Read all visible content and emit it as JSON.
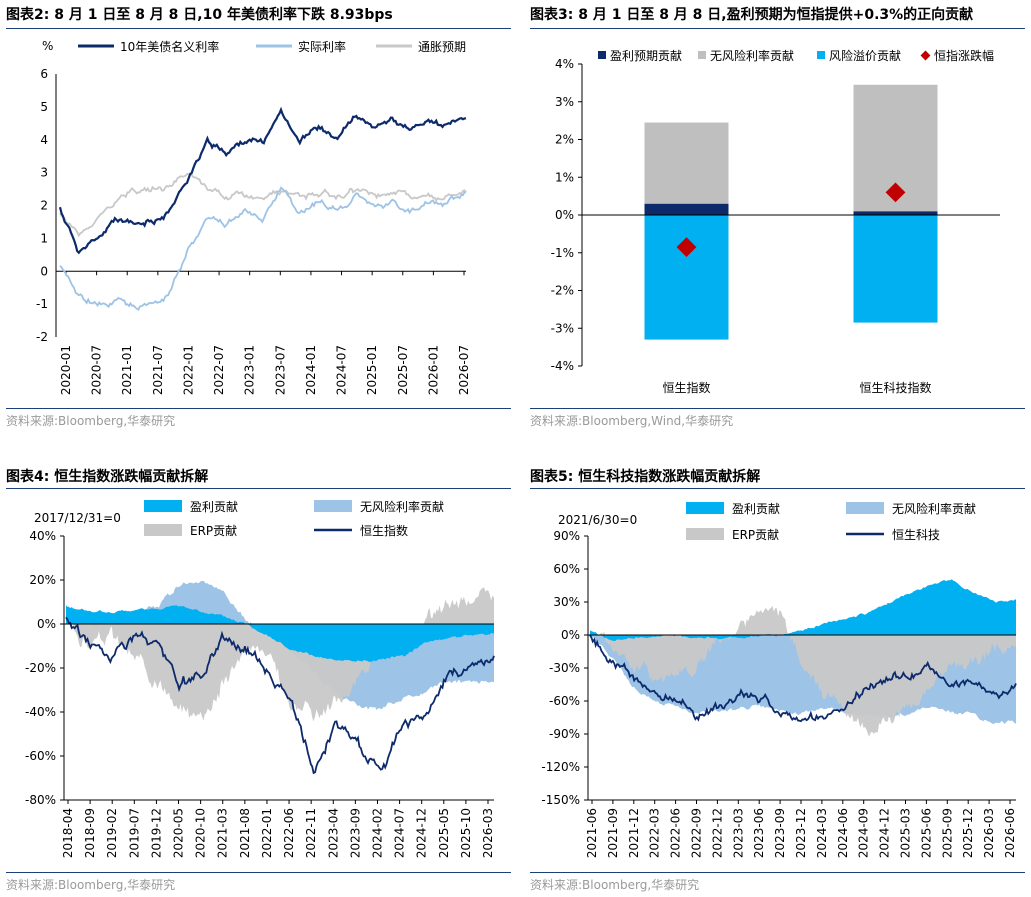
{
  "panels": {
    "p1": {
      "title": "图表2:  8 月 1 日至 8 月 8 日,10 年美债利率下跌 8.93bps",
      "source": "资料来源:Bloomberg,华泰研究"
    },
    "p2": {
      "title": "图表3:  8 月 1 日至 8 月 8 日,盈利预期为恒指提供+0.3%的正向贡献",
      "source": "资料来源:Bloomberg,Wind,华泰研究"
    },
    "p3": {
      "title": "图表4:  恒生指数涨跌幅贡献拆解",
      "source": "资料来源:Bloomberg,华泰研究"
    },
    "p4": {
      "title": "图表5:  恒生科技指数涨跌幅贡献拆解",
      "source": "资料来源:Bloomberg,华泰研究"
    }
  },
  "colors": {
    "navy": "#0d2a6b",
    "lightblue": "#9dc3e6",
    "gray": "#c8c8c8",
    "cyan": "#00b0f0",
    "red": "#c00000",
    "bargray": "#bfbfbf"
  },
  "chart_data": [
    {
      "type": "line",
      "ylabel": "%",
      "ylim": [
        -2,
        6
      ],
      "yticks": [
        "6",
        "5",
        "4",
        "3",
        "2",
        "1",
        "0",
        "-1",
        "-2"
      ],
      "xticks": [
        "2020-01",
        "2020-07",
        "2021-01",
        "2021-07",
        "2022-01",
        "2022-07",
        "2023-01",
        "2023-07",
        "2024-01",
        "2024-07",
        "2025-01",
        "2025-07",
        "2026-01",
        "2026-07"
      ],
      "series": [
        {
          "name": "10年美债名义利率",
          "color": "navy",
          "values": [
            1.9,
            0.65,
            0.9,
            1.6,
            1.35,
            1.5,
            1.9,
            2.9,
            3.9,
            3.6,
            4.0,
            3.9,
            4.9,
            4.0,
            4.4,
            4.0,
            4.7,
            4.3,
            4.6,
            4.3,
            4.6,
            4.4,
            4.7
          ]
        },
        {
          "name": "实际利率",
          "color": "lightblue",
          "values": [
            0.1,
            -0.8,
            -1.0,
            -0.9,
            -1.0,
            -1.1,
            -0.6,
            0.7,
            1.6,
            1.4,
            1.8,
            1.6,
            2.5,
            1.8,
            2.1,
            1.8,
            2.3,
            1.9,
            2.1,
            1.8,
            2.1,
            2.0,
            2.3
          ]
        },
        {
          "name": "通胀预期",
          "color": "gray",
          "values": [
            1.8,
            1.1,
            1.6,
            2.1,
            2.4,
            2.5,
            2.6,
            2.9,
            2.5,
            2.3,
            2.3,
            2.2,
            2.4,
            2.3,
            2.4,
            2.3,
            2.4,
            2.3,
            2.4,
            2.3,
            2.3,
            2.3,
            2.4
          ]
        }
      ]
    },
    {
      "type": "bar",
      "stacked": true,
      "ylim": [
        -4,
        4
      ],
      "yticks": [
        "4%",
        "3%",
        "2%",
        "1%",
        "0%",
        "-1%",
        "-2%",
        "-3%",
        "-4%"
      ],
      "categories": [
        "恒生指数",
        "恒生科技指数"
      ],
      "series": [
        {
          "name": "盈利预期贡献",
          "color": "navy",
          "values": [
            0.3,
            0.1
          ]
        },
        {
          "name": "无风险利率贡献",
          "color": "bargray",
          "values": [
            2.15,
            3.35
          ]
        },
        {
          "name": "风险溢价贡献",
          "color": "cyan",
          "values": [
            -3.3,
            -2.85
          ]
        },
        {
          "name": "恒指涨跌幅",
          "color": "red",
          "values": [
            -0.85,
            0.6
          ]
        }
      ]
    },
    {
      "type": "area",
      "note": "2017/12/31=0",
      "ylim": [
        -80,
        40
      ],
      "yticks": [
        "40%",
        "20%",
        "0%",
        "-20%",
        "-40%",
        "-60%",
        "-80%"
      ],
      "xticks": [
        "2018-04",
        "2018-09",
        "2019-02",
        "2019-07",
        "2019-12",
        "2020-05",
        "2020-10",
        "2021-03",
        "2021-08",
        "2022-01",
        "2022-06",
        "2022-11",
        "2023-04",
        "2023-09",
        "2024-02",
        "2024-07",
        "2024-12",
        "2025-05",
        "2025-10",
        "2026-03"
      ],
      "series": [
        {
          "name": "盈利贡献",
          "color": "cyan",
          "values": [
            8,
            6,
            5,
            6,
            7,
            8,
            6,
            3,
            0,
            -5,
            -12,
            -15,
            -17,
            -17,
            -16,
            -14,
            -8,
            -6,
            -5,
            -4
          ]
        },
        {
          "name": "无风险利率贡献",
          "color": "lightblue",
          "values": [
            0,
            0,
            0,
            5,
            8,
            18,
            20,
            14,
            2,
            -5,
            -12,
            -22,
            -32,
            -38,
            -38,
            -34,
            -30,
            -26,
            -26,
            -27
          ]
        },
        {
          "name": "ERP贡献",
          "color": "gray",
          "values": [
            0,
            -8,
            -5,
            -15,
            -25,
            -40,
            -40,
            -25,
            -10,
            -15,
            -35,
            -40,
            -35,
            -25,
            -15,
            -10,
            0,
            8,
            14,
            12
          ]
        },
        {
          "name": "恒生指数",
          "color": "navy",
          "values": [
            3,
            -8,
            -15,
            -5,
            -10,
            -28,
            -25,
            -5,
            -12,
            -20,
            -35,
            -68,
            -45,
            -55,
            -65,
            -45,
            -40,
            -25,
            -18,
            -15
          ]
        }
      ]
    },
    {
      "type": "area",
      "note": "2021/6/30=0",
      "ylim": [
        -150,
        90
      ],
      "yticks": [
        "90%",
        "60%",
        "30%",
        "0%",
        "-30%",
        "-60%",
        "-90%",
        "-120%",
        "-150%"
      ],
      "xticks": [
        "2021-06",
        "2021-09",
        "2021-12",
        "2022-03",
        "2022-06",
        "2022-09",
        "2022-12",
        "2023-03",
        "2023-06",
        "2023-09",
        "2023-12",
        "2024-03",
        "2024-06",
        "2024-09",
        "2024-12",
        "2025-03",
        "2025-06",
        "2025-09",
        "2025-12",
        "2026-03",
        "2026-06"
      ],
      "series": [
        {
          "name": "盈利贡献",
          "color": "cyan",
          "values": [
            5,
            -5,
            -3,
            -2,
            0,
            -2,
            -3,
            -2,
            -1,
            0,
            5,
            10,
            15,
            20,
            30,
            38,
            45,
            50,
            38,
            30,
            32
          ]
        },
        {
          "name": "无风险利率贡献",
          "color": "lightblue",
          "values": [
            0,
            -20,
            -45,
            -60,
            -65,
            -70,
            -70,
            -68,
            -65,
            -70,
            -72,
            -68,
            -70,
            -75,
            -75,
            -72,
            -68,
            -70,
            -72,
            -80,
            -80
          ]
        },
        {
          "name": "ERP贡献",
          "color": "gray",
          "values": [
            0,
            -10,
            -25,
            -35,
            -40,
            -30,
            -10,
            15,
            20,
            15,
            -30,
            -55,
            -70,
            -85,
            -75,
            -65,
            -45,
            -30,
            -25,
            -15,
            -10
          ]
        },
        {
          "name": "恒生科技",
          "color": "navy",
          "values": [
            0,
            -25,
            -40,
            -55,
            -60,
            -72,
            -65,
            -55,
            -60,
            -70,
            -80,
            -75,
            -65,
            -50,
            -40,
            -35,
            -30,
            -45,
            -40,
            -55,
            -50
          ]
        }
      ]
    }
  ]
}
